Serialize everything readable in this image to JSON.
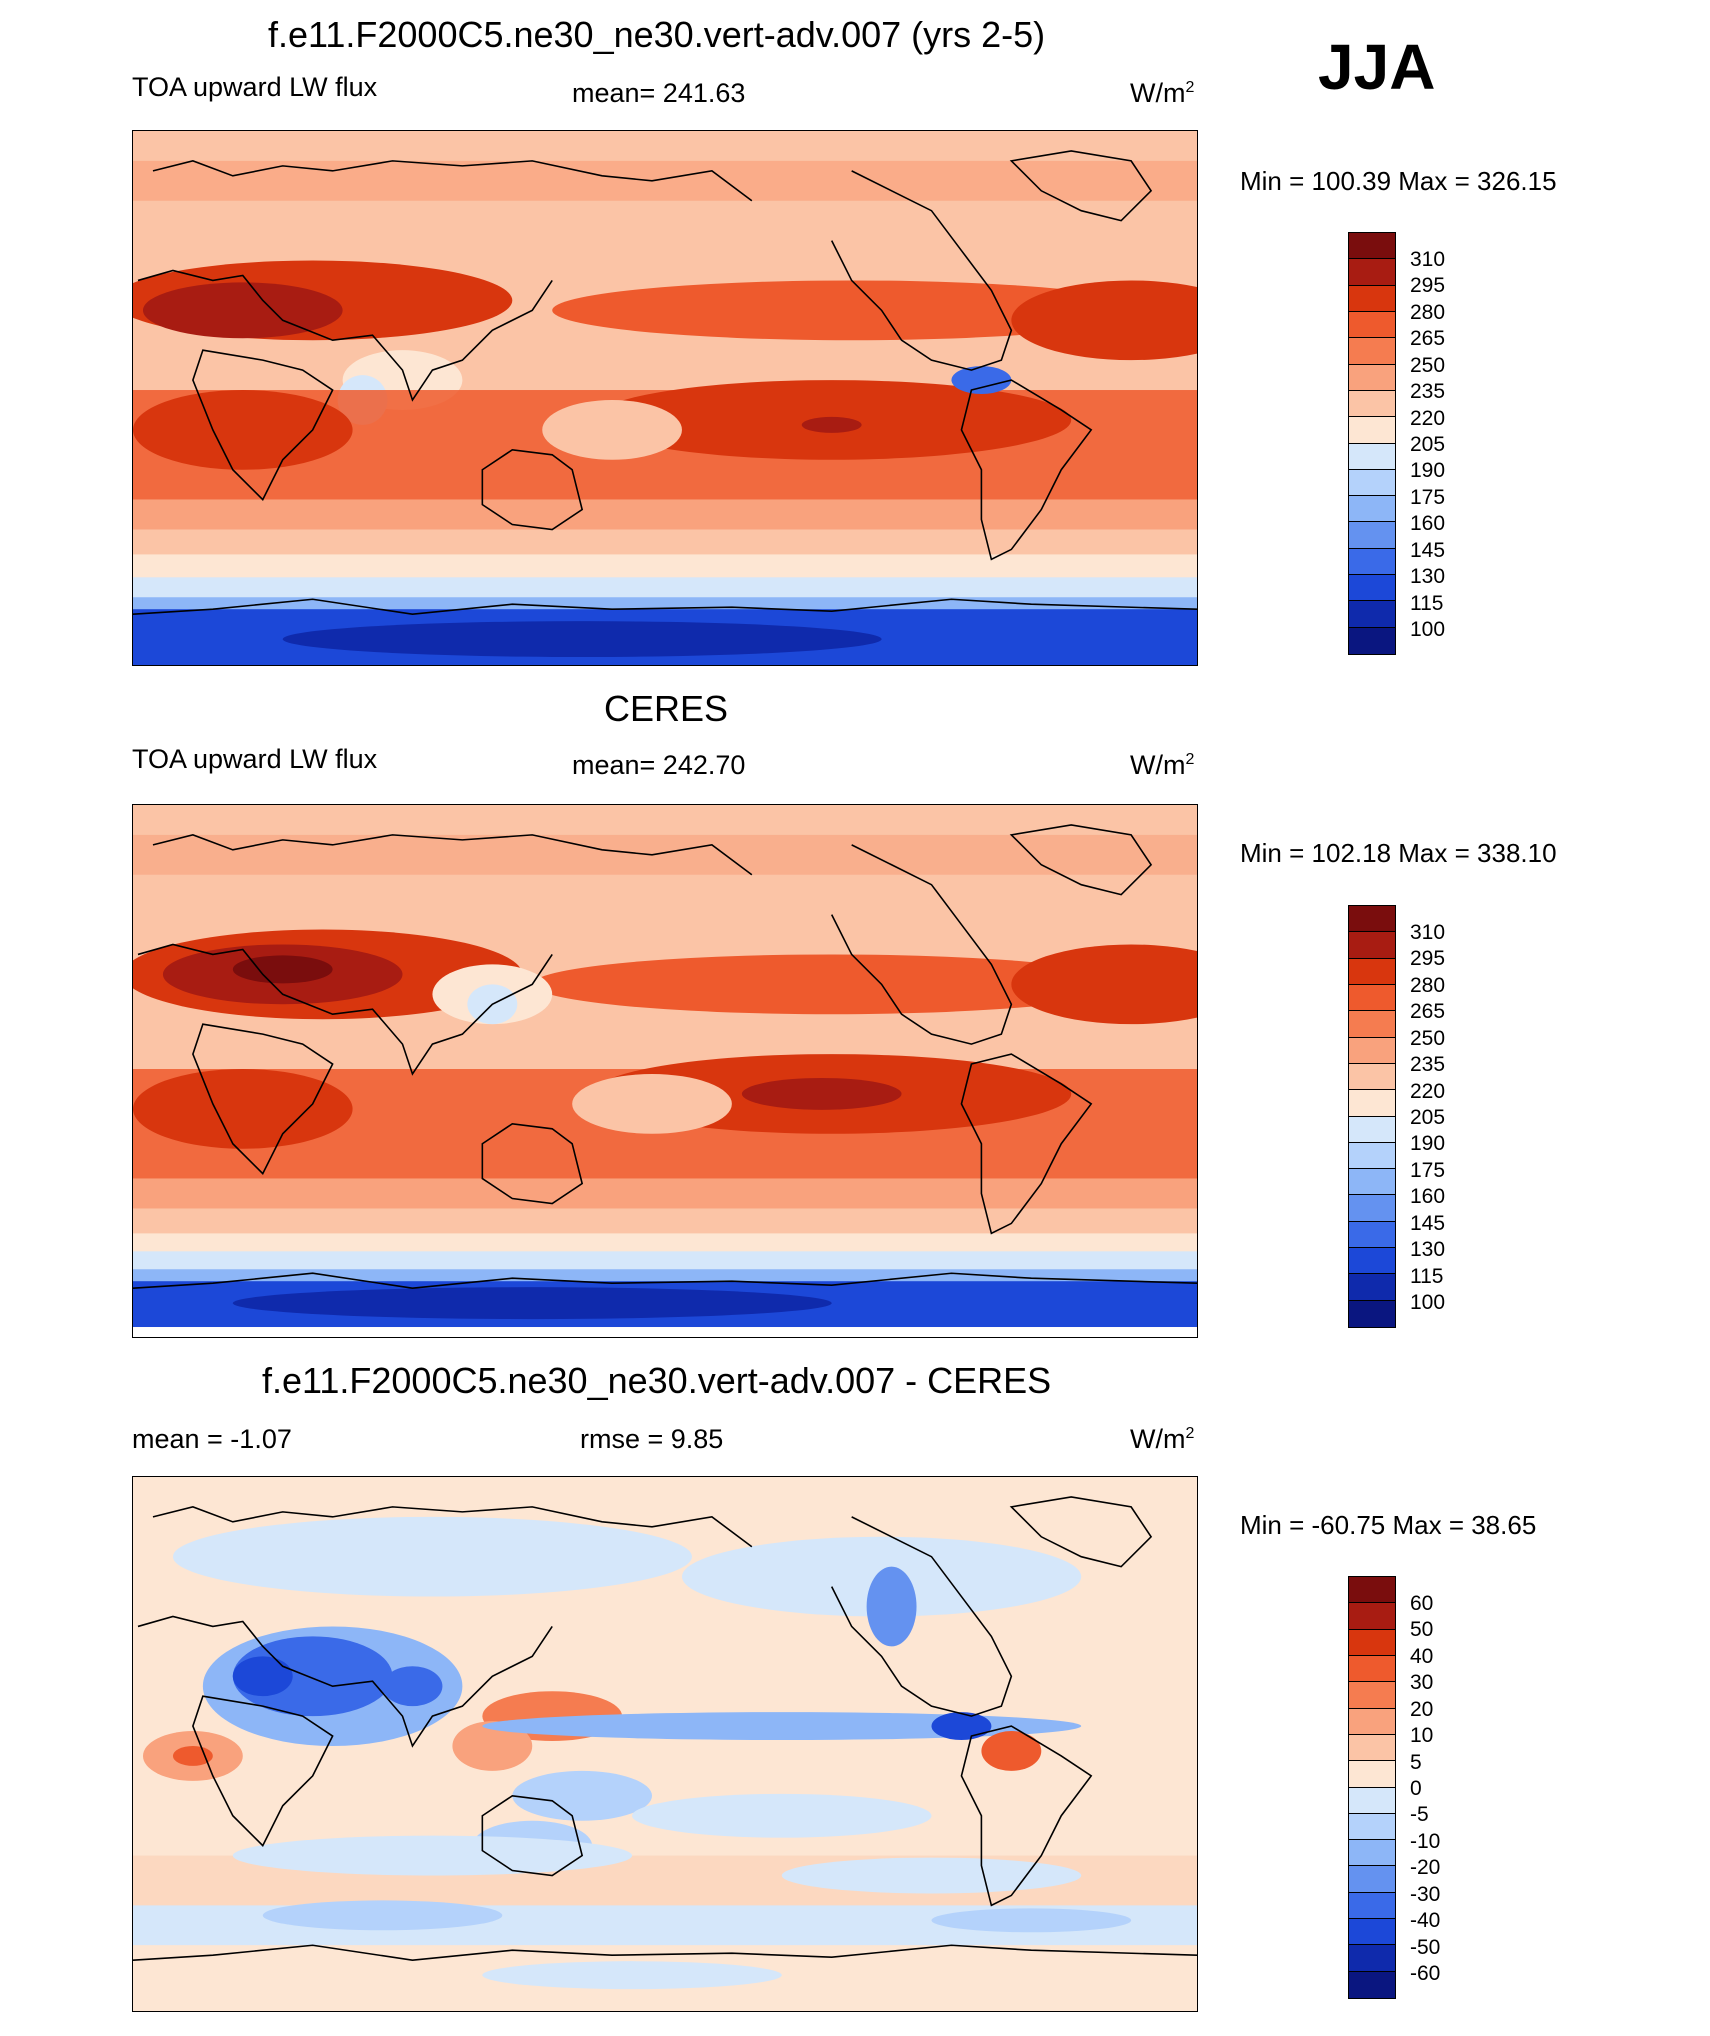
{
  "season": "JJA",
  "panels": [
    {
      "title": "f.e11.F2000C5.ne30_ne30.vert-adv.007 (yrs 2-5)",
      "variable": "TOA upward LW flux",
      "stat_center": "mean= 241.63",
      "units_base": "W/m",
      "units_exp": "2",
      "minmax": "Min = 100.39 Max = 326.15",
      "colorbar_labels": [
        "310",
        "295",
        "280",
        "265",
        "250",
        "235",
        "220",
        "205",
        "190",
        "175",
        "160",
        "145",
        "130",
        "115",
        "100"
      ]
    },
    {
      "title": "CERES",
      "variable": "TOA upward LW flux",
      "stat_center": "mean= 242.70",
      "units_base": "W/m",
      "units_exp": "2",
      "minmax": "Min = 102.18 Max = 338.10",
      "colorbar_labels": [
        "310",
        "295",
        "280",
        "265",
        "250",
        "235",
        "220",
        "205",
        "190",
        "175",
        "160",
        "145",
        "130",
        "115",
        "100"
      ]
    },
    {
      "title": "f.e11.F2000C5.ne30_ne30.vert-adv.007 - CERES",
      "stat_left": "mean =  -1.07",
      "stat_center": "rmse =   9.85",
      "units_base": "W/m",
      "units_exp": "2",
      "minmax": "Min = -60.75 Max =  38.65",
      "colorbar_labels": [
        "60",
        "50",
        "40",
        "30",
        "20",
        "10",
        "5",
        "0",
        "-5",
        "-10",
        "-20",
        "-30",
        "-40",
        "-50",
        "-60"
      ]
    }
  ],
  "colors": {
    "abs_scale": [
      "#7a0d0d",
      "#a81c12",
      "#d8360e",
      "#ee5a2d",
      "#f57c50",
      "#f9a27d",
      "#fbc4a6",
      "#fde6d3",
      "#d5e7fa",
      "#b4d2fb",
      "#8db6f7",
      "#6492f0",
      "#3a6ae8",
      "#1c48d8",
      "#0f2aac",
      "#0a1680"
    ],
    "diff_scale": [
      "#7a0d0d",
      "#a81c12",
      "#d8360e",
      "#ee5a2d",
      "#f57c50",
      "#f9a27d",
      "#fbc4a6",
      "#fde6d3",
      "#d5e7fa",
      "#b4d2fb",
      "#8db6f7",
      "#6492f0",
      "#3a6ae8",
      "#1c48d8",
      "#0f2aac",
      "#0a1680"
    ]
  }
}
